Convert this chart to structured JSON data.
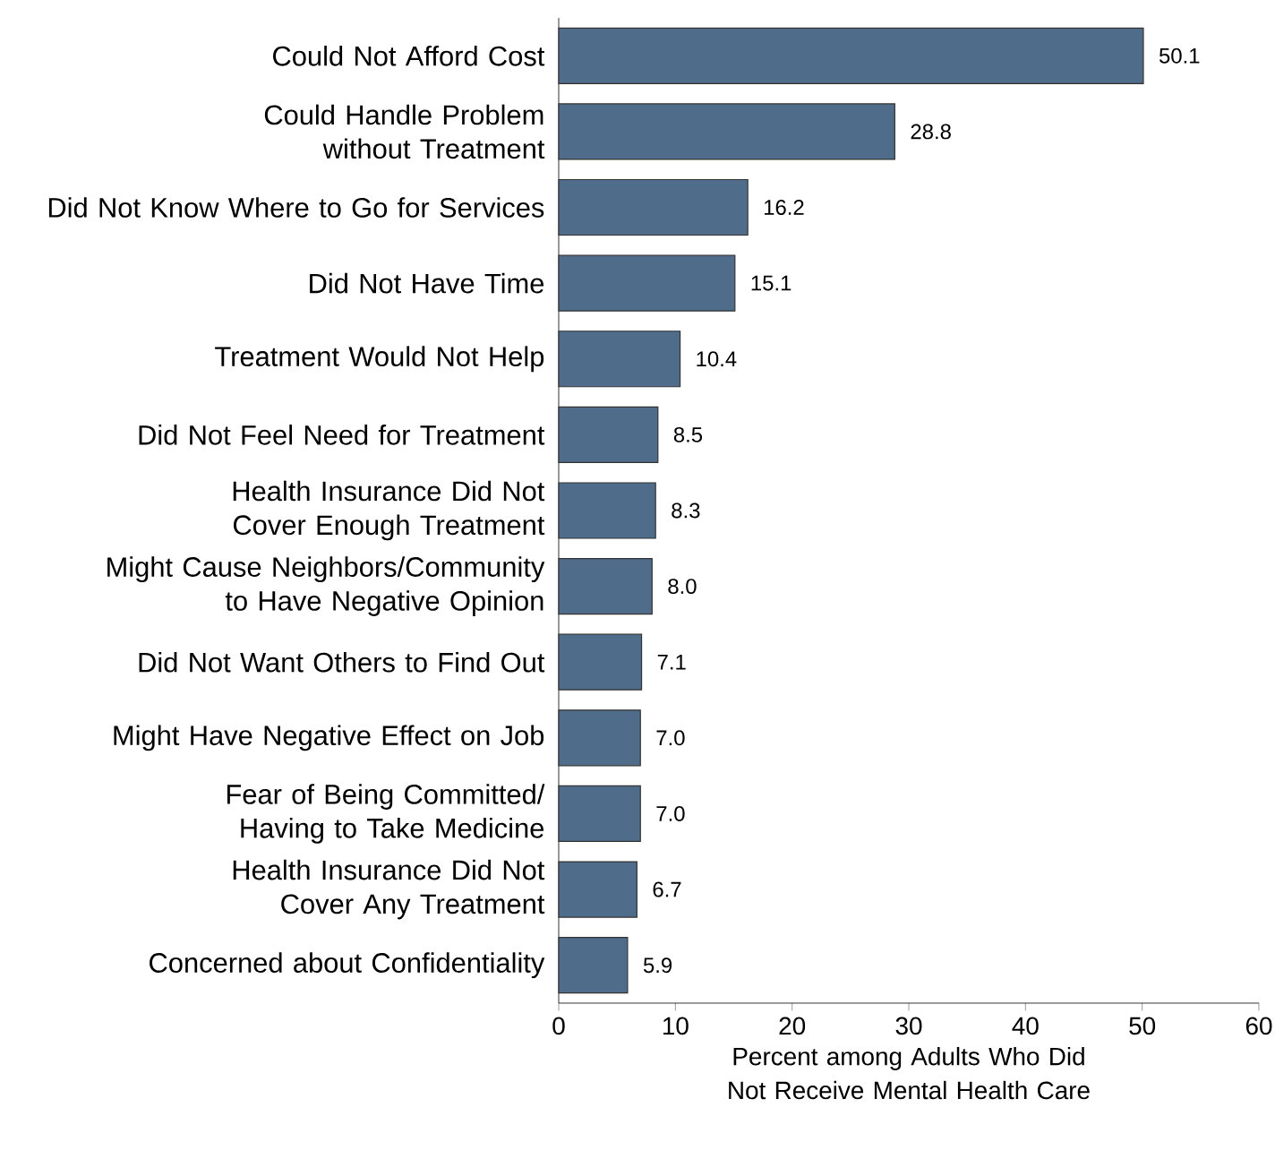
{
  "chart_data": {
    "type": "bar",
    "orientation": "horizontal",
    "xlabel": "Percent among Adults Who Did Not Receive Mental Health Care",
    "categories": [
      "Could Not Afford Cost",
      "Could Handle Problem without Treatment",
      "Did Not Know Where to Go for Services",
      "Did Not Have Time",
      "Treatment Would Not Help",
      "Did Not Feel Need for Treatment",
      "Health Insurance Did Not Cover Enough Treatment",
      "Might Cause Neighbors/Community to Have Negative Opinion",
      "Did Not Want Others to Find Out",
      "Might Have Negative Effect on Job",
      "Fear of Being Committed/ Having to Take Medicine",
      "Health Insurance Did Not Cover Any Treatment",
      "Concerned about Confidentiality"
    ],
    "values": [
      50.1,
      28.8,
      16.2,
      15.1,
      10.4,
      8.5,
      8.3,
      8.0,
      7.1,
      7.0,
      7.0,
      6.7,
      5.9
    ],
    "color": "#4f6d8a",
    "xlim": [
      0,
      60
    ],
    "xticks": [
      0,
      10,
      20,
      30,
      40,
      50,
      60
    ],
    "value_labels": [
      "50.1",
      "28.8",
      "16.2",
      "15.1",
      "10.4",
      "8.5",
      "8.3",
      "8.0",
      "7.1",
      "7.0",
      "7.0",
      "6.7",
      "5.9"
    ],
    "grid": false
  }
}
